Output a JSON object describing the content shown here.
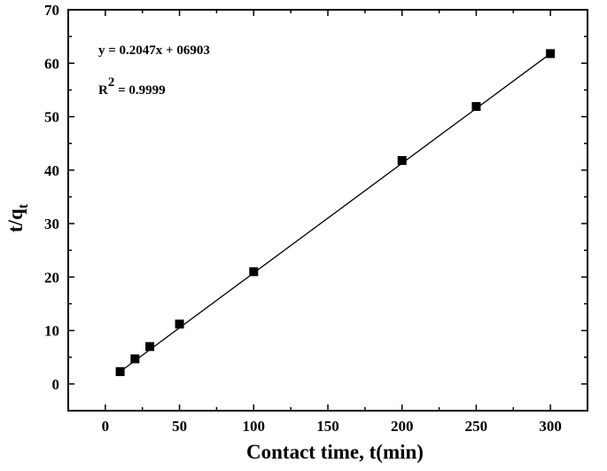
{
  "chart_data": {
    "type": "scatter",
    "title": "",
    "xlabel": "Contact time, t(min)",
    "ylabel": {
      "main": "t/q",
      "sub": "t"
    },
    "xlim": [
      -25,
      325
    ],
    "ylim": [
      -5,
      70
    ],
    "xticks": [
      0,
      50,
      100,
      150,
      200,
      250,
      300
    ],
    "yticks": [
      0,
      10,
      20,
      30,
      40,
      50,
      60,
      70
    ],
    "grid": false,
    "legend": "none",
    "series": [
      {
        "marker": "square",
        "color": "#000000",
        "x": [
          10,
          20,
          30,
          50,
          100,
          200,
          250,
          300
        ],
        "y": [
          2.3,
          4.7,
          7.0,
          11.2,
          21.0,
          41.8,
          51.9,
          61.8
        ]
      }
    ],
    "fit_line": {
      "x": [
        10,
        300
      ],
      "y": [
        2.3,
        61.8
      ],
      "color": "#000000"
    },
    "annotations": {
      "equation": "y = 0.2047x + 06903",
      "r2_label": "R",
      "r2_sup": "2",
      "r2_value": " = 0.9999"
    }
  }
}
